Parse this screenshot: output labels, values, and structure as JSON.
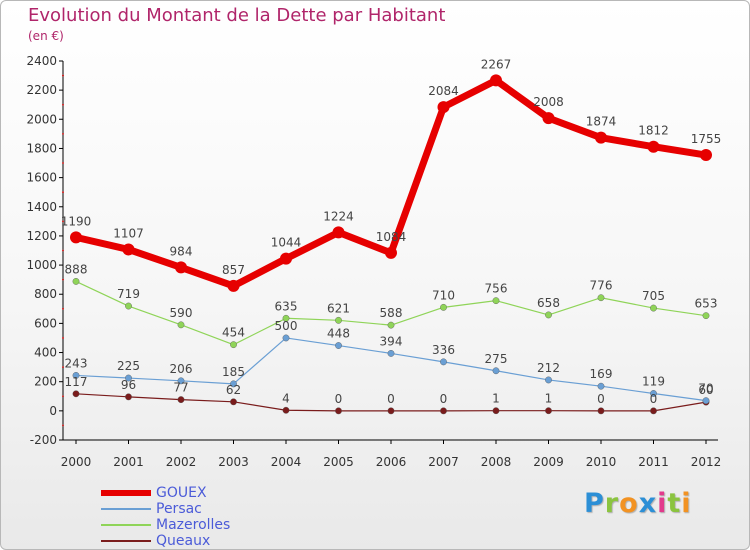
{
  "header": {
    "title": "Evolution du Montant de la Dette par Habitant",
    "subtitle": "(en €)"
  },
  "chart_data": {
    "type": "line",
    "title": "Evolution du Montant de la Dette par Habitant",
    "subtitle": "(en €)",
    "xlabel": "",
    "ylabel": "",
    "categories": [
      "2000",
      "2001",
      "2002",
      "2003",
      "2004",
      "2005",
      "2006",
      "2007",
      "2008",
      "2009",
      "2010",
      "2011",
      "2012"
    ],
    "ylim": [
      -200,
      2400
    ],
    "yticks": [
      -200,
      0,
      200,
      400,
      600,
      800,
      1000,
      1200,
      1400,
      1600,
      1800,
      2000,
      2200,
      2400
    ],
    "grid": false,
    "legend_position": "bottom-left",
    "series": [
      {
        "name": "GOUEX",
        "color": "#e60000",
        "values": [
          1190,
          1107,
          984,
          857,
          1044,
          1224,
          1084,
          2084,
          2267,
          2008,
          1874,
          1812,
          1755
        ],
        "labels": [
          "1190",
          "1107",
          "984",
          "857",
          "1044",
          "1224",
          "1084",
          "2084",
          "2267",
          "2008",
          "1874",
          "1812",
          "1755"
        ]
      },
      {
        "name": "Persac",
        "color": "#6a9fd4",
        "values": [
          243,
          225,
          206,
          185,
          500,
          448,
          394,
          336,
          275,
          212,
          169,
          119,
          70
        ],
        "labels": [
          "243",
          "225",
          "206",
          "185",
          "500",
          "448",
          "394",
          "336",
          "275",
          "212",
          "169",
          "119",
          "70"
        ]
      },
      {
        "name": "Mazerolles",
        "color": "#8fd458",
        "values": [
          888,
          719,
          590,
          454,
          635,
          621,
          588,
          710,
          756,
          658,
          776,
          705,
          653
        ],
        "labels": [
          "888",
          "719",
          "590",
          "454",
          "635",
          "621",
          "588",
          "710",
          "756",
          "658",
          "776",
          "705",
          "653"
        ]
      },
      {
        "name": "Queaux",
        "color": "#7a1c1c",
        "values": [
          117,
          96,
          77,
          62,
          4,
          0,
          0,
          0,
          1,
          1,
          0,
          0,
          60
        ],
        "labels": [
          "117",
          "96",
          "77",
          "62",
          "4",
          "0",
          "0",
          "0",
          "1",
          "1",
          "0",
          "0",
          "60"
        ]
      }
    ]
  },
  "logo": {
    "letters": [
      {
        "ch": "P",
        "color": "#2c8fd6"
      },
      {
        "ch": "r",
        "color": "#8bc43f"
      },
      {
        "ch": "o",
        "color": "#f29222"
      },
      {
        "ch": "x",
        "color": "#2c8fd6"
      },
      {
        "ch": "i",
        "color": "#e23a8c"
      },
      {
        "ch": "t",
        "color": "#8bc43f"
      },
      {
        "ch": "i",
        "color": "#f29222"
      }
    ]
  }
}
